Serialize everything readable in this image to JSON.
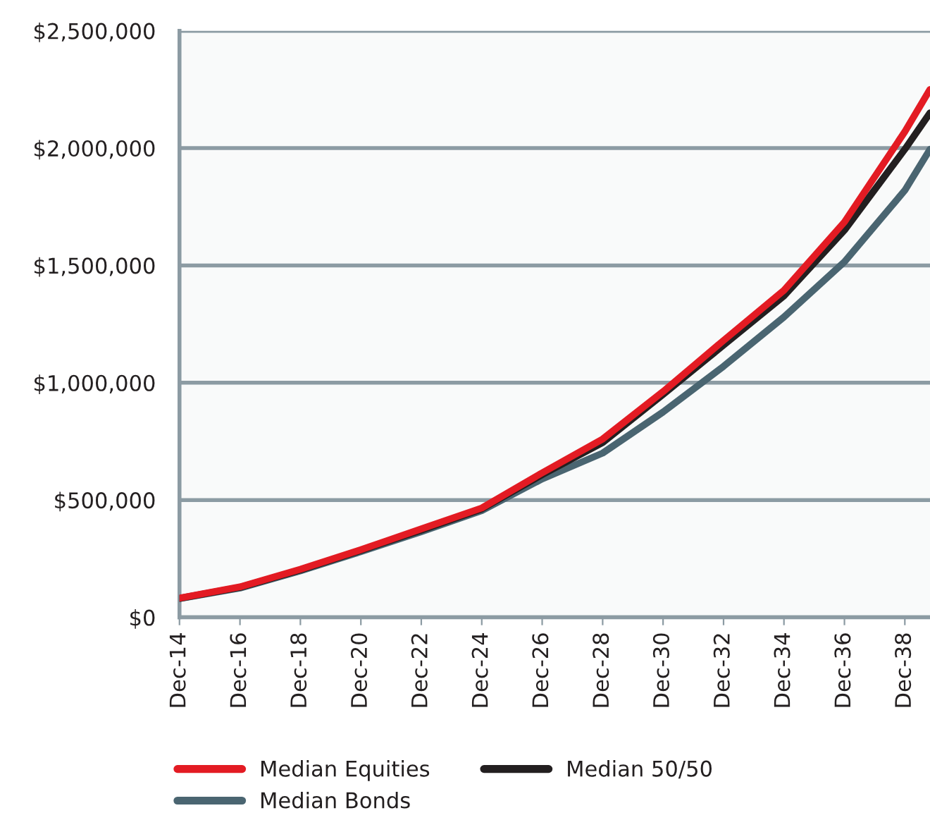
{
  "chart_data": {
    "type": "line",
    "x": [
      "2014-12",
      "2016-12",
      "2018-12",
      "2020-12",
      "2022-12",
      "2024-12",
      "2026-12",
      "2028-12",
      "2030-12",
      "2032-12",
      "2034-12",
      "2036-12",
      "2038-12",
      "2039-10"
    ],
    "series": [
      {
        "name": "Median Equities",
        "color": "#e31b23",
        "values": [
          82000,
          130000,
          205000,
          288000,
          377000,
          466000,
          616000,
          760000,
          962000,
          1180000,
          1394000,
          1685000,
          2070000,
          2250000
        ]
      },
      {
        "name": "Median Bonds",
        "color": "#4a6571",
        "values": [
          80000,
          125000,
          198000,
          280000,
          365000,
          455000,
          590000,
          700000,
          875000,
          1070000,
          1280000,
          1515000,
          1820000,
          1995000
        ]
      },
      {
        "name": "Median 50/50",
        "color": "#231f20",
        "values": [
          81000,
          128000,
          202000,
          285000,
          372000,
          462000,
          608000,
          745000,
          950000,
          1160000,
          1370000,
          1650000,
          1995000,
          2150000
        ]
      }
    ],
    "xlim": [
      "2014-12",
      "2039-10"
    ],
    "xticks": [
      {
        "value": "2014-12",
        "label": "Dec-14"
      },
      {
        "value": "2016-12",
        "label": "Dec-16"
      },
      {
        "value": "2018-12",
        "label": "Dec-18"
      },
      {
        "value": "2020-12",
        "label": "Dec-20"
      },
      {
        "value": "2022-12",
        "label": "Dec-22"
      },
      {
        "value": "2024-12",
        "label": "Dec-24"
      },
      {
        "value": "2026-12",
        "label": "Dec-26"
      },
      {
        "value": "2028-12",
        "label": "Dec-28"
      },
      {
        "value": "2030-12",
        "label": "Dec-30"
      },
      {
        "value": "2032-12",
        "label": "Dec-32"
      },
      {
        "value": "2034-12",
        "label": "Dec-34"
      },
      {
        "value": "2036-12",
        "label": "Dec-36"
      },
      {
        "value": "2038-12",
        "label": "Dec-38"
      }
    ],
    "ylim": [
      0,
      2500000
    ],
    "yticks": [
      {
        "value": 0,
        "label": "$0"
      },
      {
        "value": 500000,
        "label": "$500,000"
      },
      {
        "value": 1000000,
        "label": "$1,000,000"
      },
      {
        "value": 1500000,
        "label": "$1,500,000"
      },
      {
        "value": 2000000,
        "label": "$2,000,000"
      },
      {
        "value": 2500000,
        "label": "$2,500,000"
      }
    ],
    "grid": "y",
    "legend": "bottom",
    "marker": "none",
    "line_style": "solid"
  }
}
